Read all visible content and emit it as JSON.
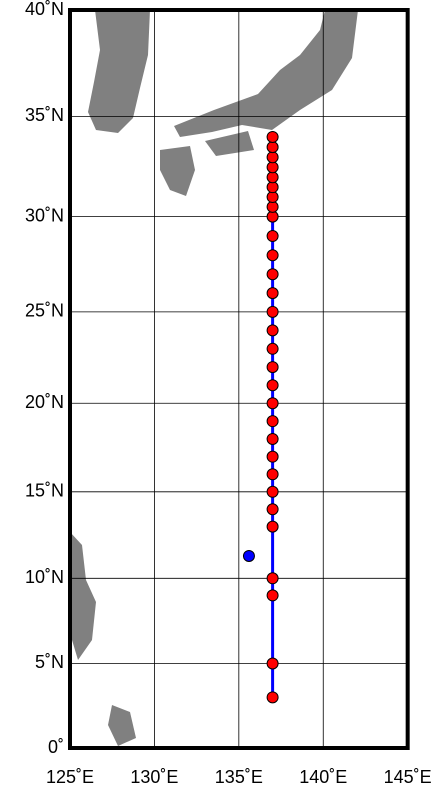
{
  "map": {
    "projection": "mercator",
    "lonlim": [
      125,
      145
    ],
    "latlim": [
      0,
      40
    ],
    "lonticks": [
      {
        "value": 125,
        "label": "125˚E"
      },
      {
        "value": 130,
        "label": "130˚E"
      },
      {
        "value": 135,
        "label": "135˚E"
      },
      {
        "value": 140,
        "label": "140˚E"
      },
      {
        "value": 145,
        "label": "145˚E"
      }
    ],
    "latticks": [
      {
        "value": 0,
        "label": "0˚"
      },
      {
        "value": 5,
        "label": "5˚N"
      },
      {
        "value": 10,
        "label": "10˚N"
      },
      {
        "value": 15,
        "label": "15˚N"
      },
      {
        "value": 20,
        "label": "20˚N"
      },
      {
        "value": 25,
        "label": "25˚N"
      },
      {
        "value": 30,
        "label": "30˚N"
      },
      {
        "value": 35,
        "label": "35˚N"
      },
      {
        "value": 40,
        "label": "40˚N"
      }
    ],
    "grid": true,
    "land_color": "#808080",
    "line": {
      "color": "#0000ff",
      "lon": 137,
      "lat": [
        3,
        34
      ]
    },
    "stations": {
      "color": "#ff0000",
      "lon": [
        137,
        137,
        137,
        137,
        137,
        137,
        137,
        137,
        137,
        137,
        137,
        137,
        137,
        137,
        137,
        137,
        137,
        137,
        137,
        137,
        137,
        137,
        137,
        137,
        137,
        137,
        137,
        137,
        137,
        137
      ],
      "lat": [
        3,
        5,
        9,
        10,
        13,
        14,
        15,
        16,
        17,
        18,
        19,
        20,
        21,
        22,
        23,
        24,
        25,
        26,
        27,
        28,
        29,
        30,
        30.5,
        31,
        31.5,
        32,
        32.5,
        33,
        33.5,
        34
      ]
    },
    "extra_point": {
      "color": "#0000ff",
      "lon": 135.6,
      "lat": 11.3
    }
  }
}
